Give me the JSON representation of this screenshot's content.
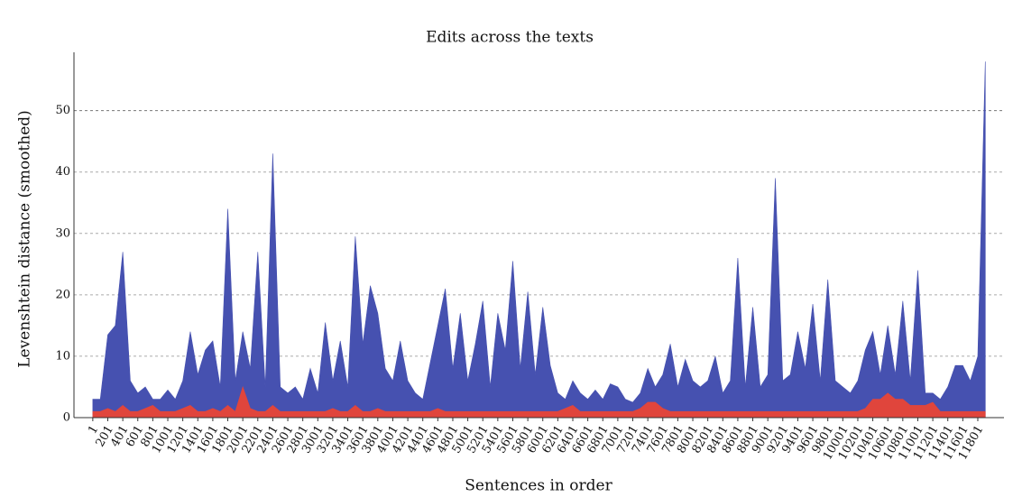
{
  "chart_data": {
    "type": "area",
    "title": "Edits across the texts",
    "x_label": "Sentences in order",
    "y_label": "Levenshtein distance (smoothed)",
    "x": [
      1,
      101,
      201,
      301,
      401,
      501,
      601,
      701,
      801,
      901,
      1001,
      1101,
      1201,
      1301,
      1401,
      1501,
      1601,
      1701,
      1801,
      1901,
      2001,
      2101,
      2201,
      2301,
      2401,
      2501,
      2601,
      2701,
      2801,
      2901,
      3001,
      3101,
      3201,
      3301,
      3401,
      3501,
      3601,
      3701,
      3801,
      3901,
      4001,
      4101,
      4201,
      4301,
      4401,
      4501,
      4601,
      4701,
      4801,
      4901,
      5001,
      5101,
      5201,
      5301,
      5401,
      5501,
      5601,
      5701,
      5801,
      5901,
      6001,
      6101,
      6201,
      6301,
      6401,
      6501,
      6601,
      6701,
      6801,
      6901,
      7001,
      7101,
      7201,
      7301,
      7401,
      7501,
      7601,
      7701,
      7801,
      7901,
      8001,
      8101,
      8201,
      8301,
      8401,
      8501,
      8601,
      8701,
      8801,
      8901,
      9001,
      9101,
      9201,
      9301,
      9401,
      9501,
      9601,
      9701,
      9801,
      9901,
      10001,
      10101,
      10201,
      10301,
      10401,
      10501,
      10601,
      10701,
      10801,
      10901,
      11001,
      11101,
      11201,
      11301,
      11401,
      11501,
      11601,
      11701,
      11801,
      11901
    ],
    "series": [
      {
        "color": "#4651b0",
        "values": [
          3,
          3,
          13.5,
          15,
          27,
          6,
          4,
          5,
          3,
          3,
          4.5,
          3,
          6,
          14,
          7,
          11,
          12.5,
          5,
          34,
          6,
          14,
          8,
          27,
          5,
          43,
          5,
          4,
          5,
          3,
          8,
          4,
          15.5,
          6,
          12.5,
          5,
          29.5,
          12,
          21.5,
          17,
          8,
          6,
          12.5,
          6,
          4,
          3,
          9,
          15,
          21,
          8,
          17,
          6,
          12,
          19,
          5,
          17,
          11,
          25.5,
          8,
          20.5,
          7,
          18,
          8.5,
          4,
          3,
          6,
          4,
          3,
          4.5,
          3,
          5.5,
          5,
          3,
          2.5,
          4,
          8,
          5,
          7,
          12,
          5,
          9.5,
          6,
          5,
          6,
          10,
          4,
          6,
          26,
          5,
          18,
          5,
          7,
          39,
          6,
          7,
          14,
          8,
          18.5,
          6,
          22.5,
          6,
          5,
          4,
          6,
          11,
          14,
          7,
          15,
          7,
          19,
          6,
          24,
          4,
          4,
          3,
          5,
          8.5,
          8.5,
          6,
          10,
          58
        ]
      },
      {
        "color": "#e0453c",
        "values": [
          1,
          1,
          1.5,
          1,
          2,
          1,
          1,
          1.5,
          2,
          1,
          1,
          1,
          1.5,
          2,
          1,
          1,
          1.5,
          1,
          2,
          1,
          5,
          1.5,
          1,
          1,
          2,
          1,
          1,
          1,
          1,
          1,
          1,
          1,
          1.5,
          1,
          1,
          2,
          1,
          1,
          1.5,
          1,
          1,
          1,
          1,
          1,
          1,
          1,
          1.5,
          1,
          1,
          1,
          1,
          1,
          1,
          1,
          1,
          1,
          1,
          1,
          1,
          1,
          1,
          1,
          1,
          1.5,
          2,
          1,
          1,
          1,
          1,
          1,
          1,
          1,
          1,
          1.5,
          2.5,
          2.5,
          1.5,
          1,
          1,
          1,
          1,
          1,
          1,
          1,
          1,
          1,
          1,
          1,
          1,
          1,
          1,
          1,
          1,
          1,
          1,
          1,
          1,
          1,
          1,
          1,
          1,
          1,
          1,
          1.5,
          3,
          3,
          4,
          3,
          3,
          2,
          2,
          2,
          2.5,
          1,
          1,
          1,
          1,
          1,
          1,
          1
        ]
      }
    ],
    "xlim": [
      -250,
      12150
    ],
    "xticks": [
      1,
      201,
      401,
      601,
      801,
      1001,
      1201,
      1401,
      1601,
      1801,
      2001,
      2201,
      2401,
      2601,
      2801,
      3001,
      3201,
      3401,
      3601,
      3801,
      4001,
      4201,
      4401,
      4601,
      4801,
      5001,
      5201,
      5401,
      5601,
      5801,
      6001,
      6201,
      6401,
      6601,
      6801,
      7001,
      7201,
      7401,
      7601,
      7801,
      8001,
      8201,
      8401,
      8601,
      8801,
      9001,
      9201,
      9401,
      9601,
      9801,
      10001,
      10201,
      10401,
      10601,
      10801,
      11001,
      11201,
      11401,
      11601,
      11801
    ],
    "ylim": [
      0,
      59.5
    ],
    "yticks": [
      0,
      10,
      20,
      30,
      40,
      50
    ],
    "grid": true
  }
}
